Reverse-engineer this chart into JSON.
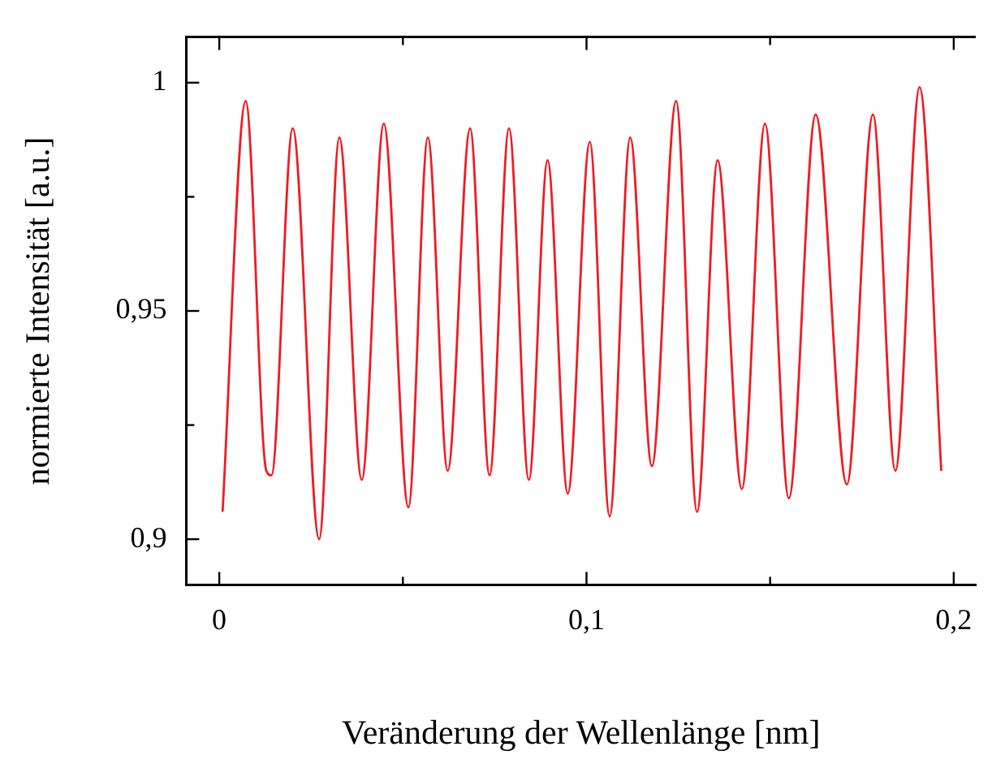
{
  "chart_data": {
    "type": "line",
    "xlabel": "Veränderung der Wellenlänge [nm]",
    "ylabel": "normierte Intensität [a.u.]",
    "xlim": [
      -0.009,
      0.206
    ],
    "ylim": [
      0.89,
      1.01
    ],
    "xticks": [
      {
        "value": 0,
        "label": "0"
      },
      {
        "value": 0.05,
        "label": null
      },
      {
        "value": 0.1,
        "label": "0,1"
      },
      {
        "value": 0.15,
        "label": null
      },
      {
        "value": 0.2,
        "label": "0,2"
      }
    ],
    "yticks": [
      {
        "value": 0.9,
        "label": "0,9"
      },
      {
        "value": 0.925,
        "label": null
      },
      {
        "value": 0.95,
        "label": "0,95"
      },
      {
        "value": 0.975,
        "label": null
      },
      {
        "value": 1,
        "label": "1"
      }
    ],
    "grid": false,
    "legend": false,
    "marker": "none",
    "line_style": "solid",
    "series": [
      {
        "color": "#ee1c24",
        "x": [
          0.0009,
          0.0072,
          0.0128,
          0.0142,
          0.02,
          0.0272,
          0.0327,
          0.0388,
          0.0448,
          0.0515,
          0.0568,
          0.0622,
          0.0683,
          0.0736,
          0.0789,
          0.0843,
          0.0894,
          0.0949,
          0.1009,
          0.1063,
          0.1119,
          0.1178,
          0.1244,
          0.1301,
          0.1357,
          0.1423,
          0.1486,
          0.1551,
          0.1624,
          0.1709,
          0.178,
          0.1841,
          0.1907,
          0.1966
        ],
        "values": [
          0.906,
          0.996,
          0.915,
          0.914,
          0.99,
          0.9,
          0.988,
          0.913,
          0.991,
          0.907,
          0.988,
          0.915,
          0.99,
          0.914,
          0.99,
          0.913,
          0.983,
          0.91,
          0.987,
          0.905,
          0.988,
          0.916,
          0.996,
          0.906,
          0.983,
          0.911,
          0.991,
          0.909,
          0.993,
          0.912,
          0.993,
          0.915,
          0.999,
          0.915
        ]
      }
    ]
  }
}
